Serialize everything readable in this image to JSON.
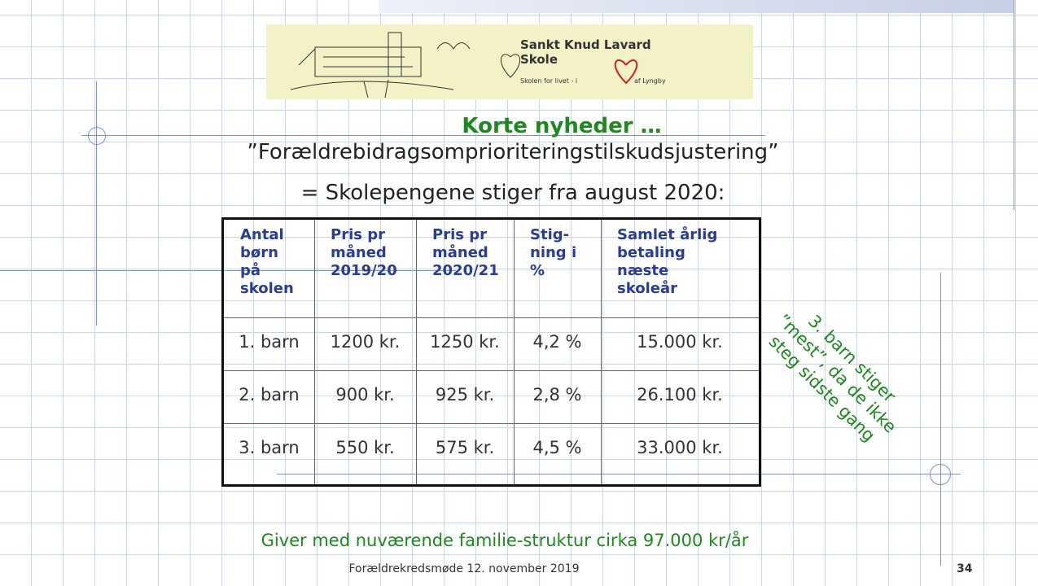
{
  "logo": {
    "name_line1": "Sankt Knud Lavard",
    "name_line2": "Skole",
    "tagline_start": "Skolen for livet - i",
    "tagline_end": "af Lyngby"
  },
  "title": "Korte nyheder …",
  "subtitle": [
    "”Forældrebidragsomprioriteringstilskudsjustering”",
    "= Skolepengene stiger fra august 2020:"
  ],
  "table": {
    "header": [
      [
        "Antal",
        "børn",
        "på",
        "skolen"
      ],
      [
        "Pris pr",
        "måned",
        "2019/20"
      ],
      [
        "Pris pr",
        "måned",
        "2020/21"
      ],
      [
        "Stig-",
        "ning i",
        "%"
      ],
      [
        "Samlet årlig",
        "betaling",
        "næste",
        "skoleår"
      ]
    ],
    "rows": [
      [
        "1. barn",
        "1200 kr.",
        "1250 kr.",
        "4,2 %",
        "15.000 kr."
      ],
      [
        "2. barn",
        "900 kr.",
        "925 kr.",
        "2,8 %",
        "26.100 kr."
      ],
      [
        "3. barn",
        "550 kr.",
        "575 kr.",
        "4,5 %",
        "33.000 kr."
      ]
    ]
  },
  "side_note": [
    "3. barn stiger",
    "”mest”, da de ikke",
    "steg sidste gang"
  ],
  "bottom_note": "Giver med nuværende familie-struktur cirka 97.000 kr/år",
  "footer": "Forældrekredsmøde 12. november 2019",
  "page_number": "34"
}
